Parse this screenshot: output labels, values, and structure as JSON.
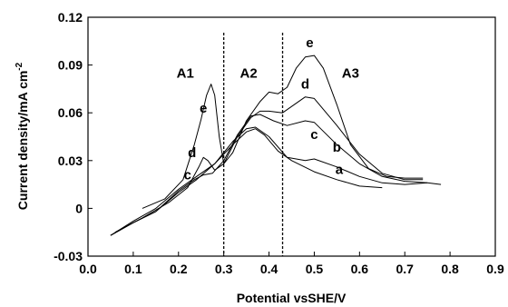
{
  "chart_data": {
    "type": "line",
    "xlabel": "Potential vsSHE/V",
    "ylabel": "Current density/mA cm",
    "ylabel_sup": "-2",
    "xlim": [
      0.0,
      0.9
    ],
    "ylim": [
      -0.03,
      0.12
    ],
    "xticks": [
      0.0,
      0.1,
      0.2,
      0.3,
      0.4,
      0.5,
      0.6,
      0.7,
      0.8,
      0.9
    ],
    "xtick_labels": [
      "0.0",
      "0.1",
      "0.2",
      "0.3",
      "0.4",
      "0.5",
      "0.6",
      "0.7",
      "0.8",
      "0.9"
    ],
    "yticks": [
      -0.03,
      0,
      0.03,
      0.06,
      0.09,
      0.12
    ],
    "ytick_labels": [
      "-0.03",
      "0",
      "0.03",
      "0.06",
      "0.09",
      "0.12"
    ],
    "grid": false,
    "region_dividers": [
      0.3,
      0.43
    ],
    "regions": [
      {
        "label": "A1",
        "x": 0.215,
        "y": 0.085
      },
      {
        "label": "A2",
        "x": 0.355,
        "y": 0.085
      },
      {
        "label": "A3",
        "x": 0.58,
        "y": 0.085
      }
    ],
    "series": [
      {
        "name": "a",
        "label_pos": [
          0.555,
          0.0245
        ],
        "points": [
          [
            0.05,
            -0.017
          ],
          [
            0.1,
            -0.008
          ],
          [
            0.15,
            0.0
          ],
          [
            0.2,
            0.012
          ],
          [
            0.24,
            0.02
          ],
          [
            0.28,
            0.028
          ],
          [
            0.32,
            0.04
          ],
          [
            0.35,
            0.048
          ],
          [
            0.37,
            0.05
          ],
          [
            0.39,
            0.046
          ],
          [
            0.42,
            0.036
          ],
          [
            0.45,
            0.03
          ],
          [
            0.5,
            0.023
          ],
          [
            0.55,
            0.018
          ],
          [
            0.6,
            0.014
          ],
          [
            0.65,
            0.013
          ]
        ]
      },
      {
        "name": "b",
        "label_pos": [
          0.55,
          0.0385
        ],
        "points": [
          [
            0.05,
            -0.017
          ],
          [
            0.1,
            -0.009
          ],
          [
            0.15,
            -0.002
          ],
          [
            0.2,
            0.01
          ],
          [
            0.24,
            0.018
          ],
          [
            0.28,
            0.028
          ],
          [
            0.32,
            0.042
          ],
          [
            0.35,
            0.05
          ],
          [
            0.37,
            0.051
          ],
          [
            0.4,
            0.045
          ],
          [
            0.44,
            0.032
          ],
          [
            0.48,
            0.03
          ],
          [
            0.5,
            0.031
          ],
          [
            0.55,
            0.026
          ],
          [
            0.6,
            0.02
          ],
          [
            0.65,
            0.016
          ],
          [
            0.7,
            0.015
          ],
          [
            0.75,
            0.016
          ]
        ]
      },
      {
        "name": "c",
        "label_pos": [
          0.5,
          0.0465
        ],
        "points": [
          [
            0.05,
            -0.017
          ],
          [
            0.1,
            -0.009
          ],
          [
            0.15,
            -0.002
          ],
          [
            0.2,
            0.011
          ],
          [
            0.235,
            0.018
          ],
          [
            0.255,
            0.021
          ],
          [
            0.275,
            0.022
          ],
          [
            0.3,
            0.03
          ],
          [
            0.33,
            0.046
          ],
          [
            0.36,
            0.058
          ],
          [
            0.38,
            0.059
          ],
          [
            0.41,
            0.055
          ],
          [
            0.44,
            0.052
          ],
          [
            0.48,
            0.055
          ],
          [
            0.5,
            0.054
          ],
          [
            0.55,
            0.04
          ],
          [
            0.6,
            0.028
          ],
          [
            0.65,
            0.02
          ],
          [
            0.7,
            0.017
          ],
          [
            0.75,
            0.016
          ],
          [
            0.78,
            0.015
          ]
        ]
      },
      {
        "name": "d",
        "label_pos": [
          0.48,
          0.078
        ],
        "points": [
          [
            0.06,
            -0.015
          ],
          [
            0.12,
            -0.006
          ],
          [
            0.18,
            0.004
          ],
          [
            0.22,
            0.013
          ],
          [
            0.245,
            0.026
          ],
          [
            0.255,
            0.032
          ],
          [
            0.265,
            0.03
          ],
          [
            0.28,
            0.024
          ],
          [
            0.3,
            0.028
          ],
          [
            0.33,
            0.045
          ],
          [
            0.36,
            0.057
          ],
          [
            0.38,
            0.061
          ],
          [
            0.4,
            0.061
          ],
          [
            0.43,
            0.06
          ],
          [
            0.46,
            0.066
          ],
          [
            0.48,
            0.07
          ],
          [
            0.5,
            0.069
          ],
          [
            0.55,
            0.052
          ],
          [
            0.6,
            0.034
          ],
          [
            0.65,
            0.022
          ],
          [
            0.7,
            0.018
          ],
          [
            0.74,
            0.018
          ]
        ]
      },
      {
        "name": "e",
        "label_pos": [
          0.49,
          0.104
        ],
        "points": [
          [
            0.12,
            0.0
          ],
          [
            0.17,
            0.006
          ],
          [
            0.21,
            0.018
          ],
          [
            0.235,
            0.04
          ],
          [
            0.25,
            0.056
          ],
          [
            0.262,
            0.071
          ],
          [
            0.272,
            0.078
          ],
          [
            0.28,
            0.071
          ],
          [
            0.29,
            0.045
          ],
          [
            0.3,
            0.028
          ],
          [
            0.32,
            0.035
          ],
          [
            0.35,
            0.055
          ],
          [
            0.38,
            0.067
          ],
          [
            0.4,
            0.073
          ],
          [
            0.42,
            0.072
          ],
          [
            0.44,
            0.076
          ],
          [
            0.46,
            0.088
          ],
          [
            0.48,
            0.095
          ],
          [
            0.5,
            0.096
          ],
          [
            0.52,
            0.088
          ],
          [
            0.55,
            0.065
          ],
          [
            0.58,
            0.04
          ],
          [
            0.62,
            0.025
          ],
          [
            0.66,
            0.02
          ],
          [
            0.7,
            0.019
          ],
          [
            0.74,
            0.019
          ]
        ]
      }
    ],
    "extra_labels": [
      {
        "name": "e",
        "x": 0.255,
        "y": 0.063
      },
      {
        "name": "d",
        "x": 0.23,
        "y": 0.035
      },
      {
        "name": "c",
        "x": 0.22,
        "y": 0.021
      }
    ]
  }
}
